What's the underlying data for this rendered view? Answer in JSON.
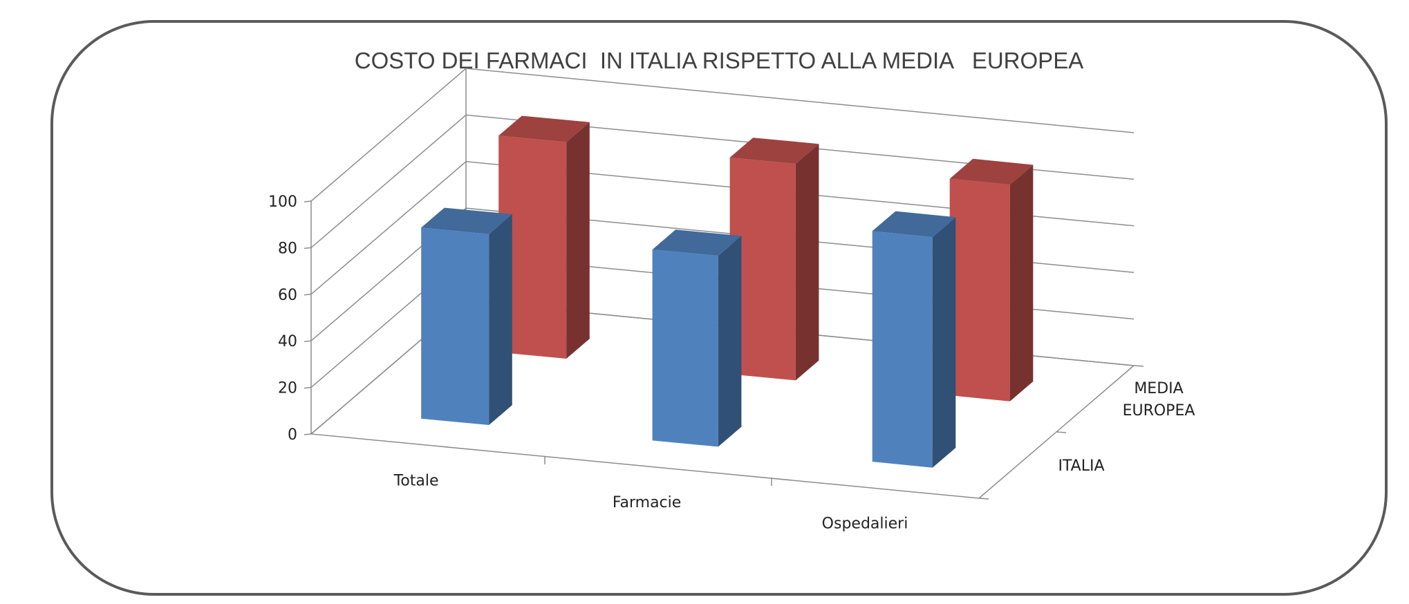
{
  "chart_data": {
    "type": "bar",
    "title": "COSTO DEI FARMACI  IN ITALIA RISPETTO ALLA MEDIA   EUROPEA",
    "categories": [
      "Totale",
      "Farmacie",
      "Ospedalieri"
    ],
    "series": [
      {
        "name": "ITALIA",
        "values": [
          82,
          82,
          99
        ],
        "color": "#4f81bd"
      },
      {
        "name": "MEDIA\nEUROPEA",
        "values": [
          93,
          93,
          93
        ],
        "color": "#c0504d"
      }
    ],
    "y_ticks": [
      "0",
      "20",
      "40",
      "60",
      "80",
      "100"
    ],
    "ylim": [
      0,
      100
    ],
    "grid": true,
    "three_d": true
  }
}
